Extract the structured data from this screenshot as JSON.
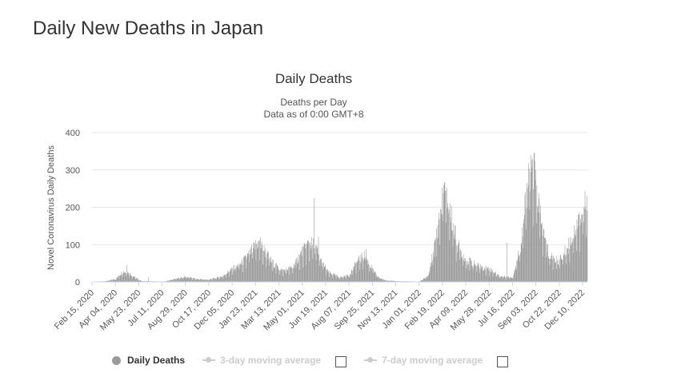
{
  "page": {
    "title": "Daily New Deaths in Japan"
  },
  "chart_data": {
    "type": "bar",
    "title": "Daily Deaths",
    "subtitle_line1": "Deaths per Day",
    "subtitle_line2": "Data as of 0:00 GMT+8",
    "ylabel": "Novel Coronavirus Daily Deaths",
    "xlabel": "",
    "ylim": [
      0,
      400
    ],
    "yticks": [
      0,
      100,
      200,
      300,
      400
    ],
    "grid": true,
    "bar_color": "#9a9a9a",
    "x_start": "2020-02-15",
    "x_end": "2022-12-20",
    "xtick_labels": [
      "Feb 15, 2020",
      "Apr 04, 2020",
      "May 23, 2020",
      "Jul 11, 2020",
      "Aug 29, 2020",
      "Oct 17, 2020",
      "Dec 05, 2020",
      "Jan 23, 2021",
      "Mar 13, 2021",
      "May 01, 2021",
      "Jun 19, 2021",
      "Aug 07, 2021",
      "Sep 25, 2021",
      "Nov 13, 2021",
      "Jan 01, 2022",
      "Feb 19, 2022",
      "Apr 09, 2022",
      "May 28, 2022",
      "Jul 16, 2022",
      "Sep 03, 2022",
      "Oct 22, 2022",
      "Dec 10, 2022"
    ],
    "daily_deaths_profile": [
      {
        "date": "2020-02-15",
        "value": 0
      },
      {
        "date": "2020-03-15",
        "value": 2
      },
      {
        "date": "2020-04-05",
        "value": 8
      },
      {
        "date": "2020-04-20",
        "value": 28
      },
      {
        "date": "2020-05-01",
        "value": 25
      },
      {
        "date": "2020-05-15",
        "value": 12
      },
      {
        "date": "2020-05-30",
        "value": 2
      },
      {
        "date": "2020-07-15",
        "value": 1
      },
      {
        "date": "2020-08-15",
        "value": 10
      },
      {
        "date": "2020-08-29",
        "value": 14
      },
      {
        "date": "2020-09-20",
        "value": 8
      },
      {
        "date": "2020-10-17",
        "value": 6
      },
      {
        "date": "2020-11-15",
        "value": 15
      },
      {
        "date": "2020-12-05",
        "value": 35
      },
      {
        "date": "2020-12-25",
        "value": 50
      },
      {
        "date": "2021-01-10",
        "value": 75
      },
      {
        "date": "2021-01-28",
        "value": 105
      },
      {
        "date": "2021-02-10",
        "value": 85
      },
      {
        "date": "2021-02-28",
        "value": 50
      },
      {
        "date": "2021-03-20",
        "value": 30
      },
      {
        "date": "2021-04-10",
        "value": 38
      },
      {
        "date": "2021-05-01",
        "value": 80
      },
      {
        "date": "2021-05-15",
        "value": 105
      },
      {
        "date": "2021-05-28",
        "value": 95
      },
      {
        "date": "2021-06-10",
        "value": 55
      },
      {
        "date": "2021-06-25",
        "value": 25
      },
      {
        "date": "2021-07-20",
        "value": 12
      },
      {
        "date": "2021-08-07",
        "value": 18
      },
      {
        "date": "2021-08-25",
        "value": 55
      },
      {
        "date": "2021-09-08",
        "value": 70
      },
      {
        "date": "2021-09-20",
        "value": 45
      },
      {
        "date": "2021-10-05",
        "value": 15
      },
      {
        "date": "2021-10-20",
        "value": 5
      },
      {
        "date": "2021-11-13",
        "value": 2
      },
      {
        "date": "2022-01-01",
        "value": 1
      },
      {
        "date": "2022-01-20",
        "value": 15
      },
      {
        "date": "2022-02-05",
        "value": 110
      },
      {
        "date": "2022-02-22",
        "value": 245
      },
      {
        "date": "2022-03-08",
        "value": 185
      },
      {
        "date": "2022-03-22",
        "value": 100
      },
      {
        "date": "2022-04-09",
        "value": 60
      },
      {
        "date": "2022-05-01",
        "value": 45
      },
      {
        "date": "2022-05-28",
        "value": 35
      },
      {
        "date": "2022-06-20",
        "value": 15
      },
      {
        "date": "2022-07-16",
        "value": 12
      },
      {
        "date": "2022-08-01",
        "value": 90
      },
      {
        "date": "2022-08-18",
        "value": 265
      },
      {
        "date": "2022-08-30",
        "value": 300
      },
      {
        "date": "2022-09-15",
        "value": 150
      },
      {
        "date": "2022-10-01",
        "value": 70
      },
      {
        "date": "2022-10-22",
        "value": 55
      },
      {
        "date": "2022-11-10",
        "value": 95
      },
      {
        "date": "2022-11-30",
        "value": 160
      },
      {
        "date": "2022-12-10",
        "value": 180
      },
      {
        "date": "2022-12-20",
        "value": 200
      }
    ],
    "daily_deaths_spikes": [
      {
        "date": "2020-04-28",
        "value": 46
      },
      {
        "date": "2020-06-12",
        "value": 13
      },
      {
        "date": "2021-02-02",
        "value": 120
      },
      {
        "date": "2021-05-26",
        "value": 225
      },
      {
        "date": "2021-06-04",
        "value": 120
      },
      {
        "date": "2021-09-12",
        "value": 88
      },
      {
        "date": "2022-02-23",
        "value": 268
      },
      {
        "date": "2022-07-04",
        "value": 105
      },
      {
        "date": "2022-08-31",
        "value": 345
      },
      {
        "date": "2022-08-27",
        "value": 330
      },
      {
        "date": "2022-12-15",
        "value": 243
      }
    ]
  },
  "legend": {
    "items": [
      {
        "label": "Daily Deaths",
        "active": true
      },
      {
        "label": "3-day moving average",
        "active": false
      },
      {
        "label": "7-day moving average",
        "active": false
      }
    ]
  }
}
